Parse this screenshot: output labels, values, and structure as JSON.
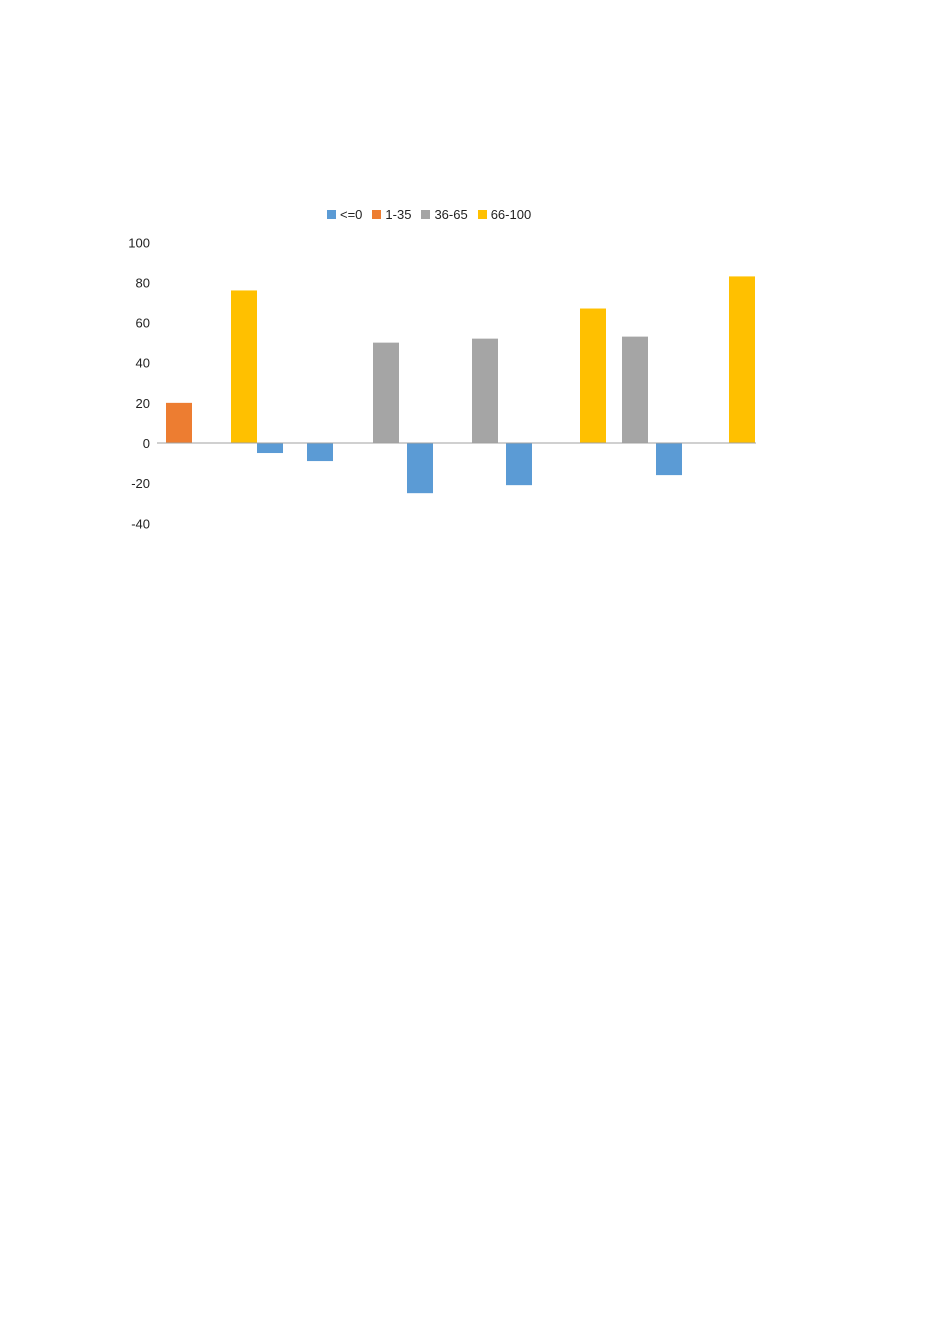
{
  "chart_data": {
    "type": "bar",
    "title": "",
    "xlabel": "",
    "ylabel": "",
    "ylim": [
      -40,
      100
    ],
    "yticks": [
      100,
      80,
      60,
      40,
      20,
      0,
      -20,
      -40
    ],
    "grid": false,
    "legend_position": "top",
    "series": [
      {
        "name": "<=0",
        "color": "#5b9bd5"
      },
      {
        "name": "1-35",
        "color": "#ed7d31"
      },
      {
        "name": "36-65",
        "color": "#a5a5a5"
      },
      {
        "name": "66-100",
        "color": "#ffc000"
      }
    ],
    "bars": [
      {
        "series": 1,
        "value": 20
      },
      {
        "series": 3,
        "value": 76
      },
      {
        "series": 0,
        "value": -5
      },
      {
        "series": 0,
        "value": -9
      },
      {
        "series": 2,
        "value": 50
      },
      {
        "series": 0,
        "value": -25
      },
      {
        "series": 2,
        "value": 52
      },
      {
        "series": 0,
        "value": -21
      },
      {
        "series": 3,
        "value": 67
      },
      {
        "series": 2,
        "value": 53
      },
      {
        "series": 0,
        "value": -16
      },
      {
        "series": 3,
        "value": 83
      }
    ]
  }
}
